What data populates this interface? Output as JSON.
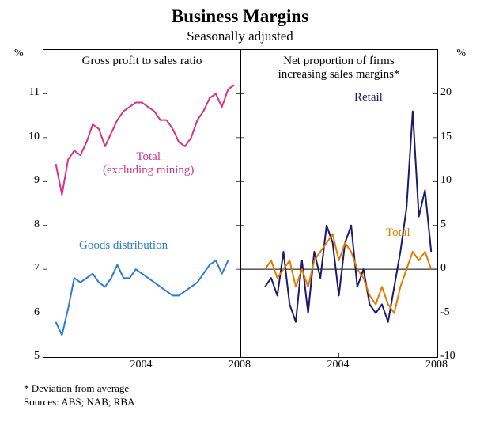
{
  "title": "Business Margins",
  "subtitle": "Seasonally adjusted",
  "footnote_star": "*    Deviation from average",
  "footnote_sources": "Sources: ABS; NAB; RBA",
  "left_panel": {
    "title": "Gross profit to sales ratio",
    "y_unit": "%",
    "ylim": [
      5,
      12
    ],
    "yticks": [
      5,
      6,
      7,
      8,
      9,
      10,
      11
    ],
    "x_range": [
      2000,
      2008
    ],
    "xticks": [
      2004,
      2008
    ],
    "series": {
      "total_ex_mining": {
        "label": "Total",
        "sublabel": "(excluding mining)",
        "color": "#d63384",
        "stroke_width": 2,
        "points": [
          [
            2000.5,
            9.4
          ],
          [
            2000.75,
            8.7
          ],
          [
            2001.0,
            9.5
          ],
          [
            2001.25,
            9.7
          ],
          [
            2001.5,
            9.6
          ],
          [
            2001.75,
            9.9
          ],
          [
            2002.0,
            10.3
          ],
          [
            2002.25,
            10.2
          ],
          [
            2002.5,
            9.8
          ],
          [
            2002.75,
            10.1
          ],
          [
            2003.0,
            10.4
          ],
          [
            2003.25,
            10.6
          ],
          [
            2003.5,
            10.7
          ],
          [
            2003.75,
            10.8
          ],
          [
            2004.0,
            10.8
          ],
          [
            2004.25,
            10.7
          ],
          [
            2004.5,
            10.6
          ],
          [
            2004.75,
            10.4
          ],
          [
            2005.0,
            10.4
          ],
          [
            2005.25,
            10.2
          ],
          [
            2005.5,
            9.9
          ],
          [
            2005.75,
            9.8
          ],
          [
            2006.0,
            10.0
          ],
          [
            2006.25,
            10.4
          ],
          [
            2006.5,
            10.6
          ],
          [
            2006.75,
            10.9
          ],
          [
            2007.0,
            11.0
          ],
          [
            2007.25,
            10.7
          ],
          [
            2007.5,
            11.1
          ],
          [
            2007.75,
            11.2
          ]
        ]
      },
      "goods_distribution": {
        "label": "Goods distribution",
        "color": "#2b7cd3",
        "stroke_width": 2,
        "points": [
          [
            2000.5,
            5.8
          ],
          [
            2000.75,
            5.5
          ],
          [
            2001.0,
            6.1
          ],
          [
            2001.25,
            6.8
          ],
          [
            2001.5,
            6.7
          ],
          [
            2001.75,
            6.8
          ],
          [
            2002.0,
            6.9
          ],
          [
            2002.25,
            6.7
          ],
          [
            2002.5,
            6.6
          ],
          [
            2002.75,
            6.8
          ],
          [
            2003.0,
            7.1
          ],
          [
            2003.25,
            6.8
          ],
          [
            2003.5,
            6.8
          ],
          [
            2003.75,
            7.0
          ],
          [
            2004.0,
            6.9
          ],
          [
            2004.25,
            6.8
          ],
          [
            2004.5,
            6.7
          ],
          [
            2004.75,
            6.6
          ],
          [
            2005.0,
            6.5
          ],
          [
            2005.25,
            6.4
          ],
          [
            2005.5,
            6.4
          ],
          [
            2005.75,
            6.5
          ],
          [
            2006.0,
            6.6
          ],
          [
            2006.25,
            6.7
          ],
          [
            2006.5,
            6.9
          ],
          [
            2006.75,
            7.1
          ],
          [
            2007.0,
            7.2
          ],
          [
            2007.25,
            6.9
          ],
          [
            2007.5,
            7.2
          ]
        ]
      }
    }
  },
  "right_panel": {
    "title": "Net proportion of firms increasing sales margins*",
    "y_unit": "%",
    "ylim": [
      -10,
      25
    ],
    "yticks": [
      -10,
      -5,
      0,
      5,
      10,
      15,
      20
    ],
    "x_range": [
      2000,
      2008
    ],
    "xticks": [
      2004,
      2008
    ],
    "series": {
      "retail": {
        "label": "Retail",
        "color": "#1a1a6e",
        "stroke_width": 2,
        "points": [
          [
            2001.0,
            -2
          ],
          [
            2001.25,
            -1
          ],
          [
            2001.5,
            -3
          ],
          [
            2001.75,
            2
          ],
          [
            2002.0,
            -4
          ],
          [
            2002.25,
            -6
          ],
          [
            2002.5,
            1
          ],
          [
            2002.75,
            -5
          ],
          [
            2003.0,
            2
          ],
          [
            2003.25,
            -1
          ],
          [
            2003.5,
            5
          ],
          [
            2003.75,
            3
          ],
          [
            2004.0,
            -3
          ],
          [
            2004.25,
            3
          ],
          [
            2004.5,
            5
          ],
          [
            2004.75,
            -2
          ],
          [
            2005.0,
            0
          ],
          [
            2005.25,
            -4
          ],
          [
            2005.5,
            -5
          ],
          [
            2005.75,
            -4
          ],
          [
            2006.0,
            -6
          ],
          [
            2006.25,
            -2
          ],
          [
            2006.5,
            2
          ],
          [
            2006.75,
            7
          ],
          [
            2007.0,
            18
          ],
          [
            2007.25,
            6
          ],
          [
            2007.5,
            9
          ],
          [
            2007.75,
            2
          ]
        ]
      },
      "total": {
        "label": "Total",
        "color": "#e07b00",
        "stroke_width": 2,
        "points": [
          [
            2001.0,
            0
          ],
          [
            2001.25,
            1
          ],
          [
            2001.5,
            -1
          ],
          [
            2001.75,
            0
          ],
          [
            2002.0,
            1
          ],
          [
            2002.25,
            -2
          ],
          [
            2002.5,
            0
          ],
          [
            2002.75,
            -2
          ],
          [
            2003.0,
            1
          ],
          [
            2003.25,
            2
          ],
          [
            2003.5,
            3
          ],
          [
            2003.75,
            4
          ],
          [
            2004.0,
            1
          ],
          [
            2004.25,
            3
          ],
          [
            2004.5,
            2
          ],
          [
            2004.75,
            0
          ],
          [
            2005.0,
            -1
          ],
          [
            2005.25,
            -3
          ],
          [
            2005.5,
            -4
          ],
          [
            2005.75,
            -2
          ],
          [
            2006.0,
            -4
          ],
          [
            2006.25,
            -5
          ],
          [
            2006.5,
            -2
          ],
          [
            2006.75,
            0
          ],
          [
            2007.0,
            2
          ],
          [
            2007.25,
            1
          ],
          [
            2007.5,
            2
          ],
          [
            2007.75,
            0
          ]
        ]
      }
    }
  }
}
